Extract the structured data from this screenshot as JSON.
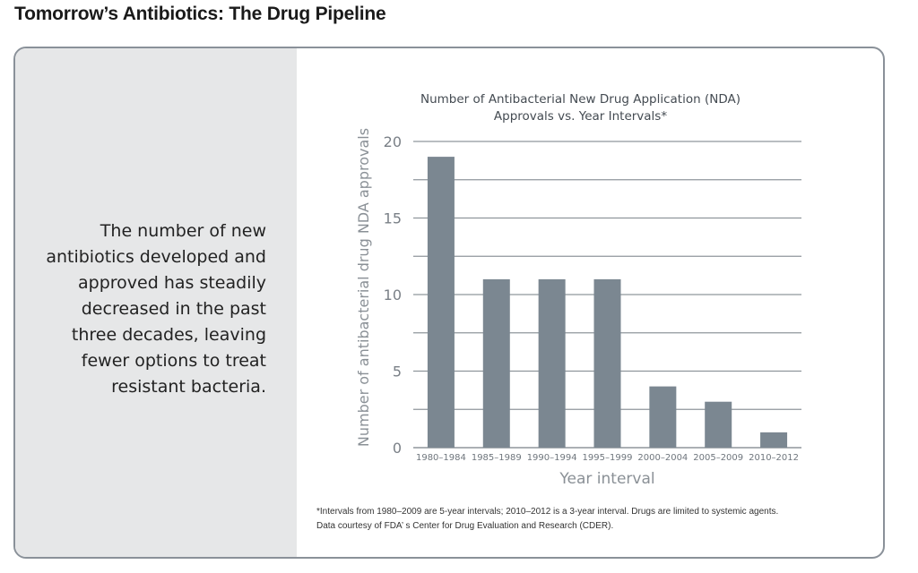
{
  "page": {
    "title": "Tomorrow’s Antibiotics: The Drug Pipeline"
  },
  "side_panel": {
    "text": "The number of new antibiotics developed and approved has steadily decreased in the past three decades, leaving fewer options to treat resistant bacteria."
  },
  "footnote": {
    "line1": "*Intervals from 1980–2009 are 5-year intervals; 2010–2012 is a 3-year interval. Drugs are limited to systemic agents.",
    "line2": "Data courtesy of FDA’ s Center for Drug Evaluation and Research (CDER)."
  },
  "colors": {
    "bar": "#7b8791",
    "grid": "#8f969c",
    "text": "#444b52",
    "panel": "#e6e7e8"
  },
  "chart_data": {
    "type": "bar",
    "title_lines": [
      "Number of Antibacterial New Drug Application (NDA)",
      "Approvals vs. Year Intervals*"
    ],
    "categories": [
      "1980–1984",
      "1985–1989",
      "1990–1994",
      "1995–1999",
      "2000–2004",
      "2005–2009",
      "2010–2012"
    ],
    "values": [
      19,
      11,
      11,
      11,
      4,
      3,
      1
    ],
    "xlabel": "Year interval",
    "ylabel": "Number of antibacterial drug NDA approvals",
    "ylim": [
      0,
      20
    ],
    "yticks": [
      0,
      5,
      10,
      15,
      20
    ],
    "grid_step": 2.5,
    "grid": true
  }
}
